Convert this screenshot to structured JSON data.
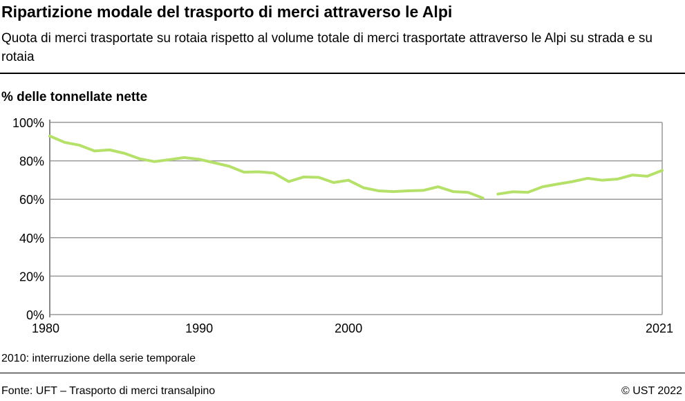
{
  "header": {
    "title": "Ripartizione modale del trasporto di merci attraverso le Alpi",
    "subtitle": "Quota di merci trasportate su rotaia rispetto al volume totale di merci trasportate attraverso le Alpi su strada e su rotaia"
  },
  "footer": {
    "note": "2010: interruzione della serie temporale",
    "source": "Fonte: UFT – Trasporto di merci transalpino",
    "copyright": "© UST 2022"
  },
  "chart_data": {
    "type": "line",
    "title": "Ripartizione modale del trasporto di merci attraverso le Alpi",
    "ylabel": "% delle tonnellate nette",
    "ylim": [
      0,
      100
    ],
    "xlim": [
      1980,
      2021
    ],
    "y_ticks": [
      "0%",
      "20%",
      "40%",
      "60%",
      "80%",
      "100%"
    ],
    "y_tick_values": [
      0,
      20,
      40,
      60,
      80,
      100
    ],
    "x_ticks": [
      "1980",
      "1990",
      "2000",
      "2021"
    ],
    "x_tick_values": [
      1980,
      1990,
      2000,
      2021
    ],
    "grid": "horizontal",
    "color": "#b5e06a",
    "series": [
      {
        "segment": "1980-2009",
        "x": [
          1980,
          1981,
          1982,
          1983,
          1984,
          1985,
          1986,
          1987,
          1988,
          1989,
          1990,
          1991,
          1992,
          1993,
          1994,
          1995,
          1996,
          1997,
          1998,
          1999,
          2000,
          2001,
          2002,
          2003,
          2004,
          2005,
          2006,
          2007,
          2008,
          2009
        ],
        "values": [
          92.9,
          89.6,
          88.1,
          85.1,
          85.7,
          83.9,
          81.1,
          79.6,
          80.6,
          81.7,
          80.8,
          79.0,
          77.2,
          74.1,
          74.3,
          73.6,
          69.2,
          71.6,
          71.4,
          68.7,
          69.9,
          66.0,
          64.4,
          64.0,
          64.4,
          64.6,
          66.5,
          64.0,
          63.6,
          60.6
        ]
      },
      {
        "segment": "2010-2021",
        "x": [
          2010,
          2011,
          2012,
          2013,
          2014,
          2015,
          2016,
          2017,
          2018,
          2019,
          2020,
          2021
        ],
        "values": [
          62.7,
          63.9,
          63.6,
          66.5,
          67.9,
          69.2,
          70.9,
          69.9,
          70.5,
          72.6,
          72.0,
          75.0
        ]
      }
    ]
  }
}
